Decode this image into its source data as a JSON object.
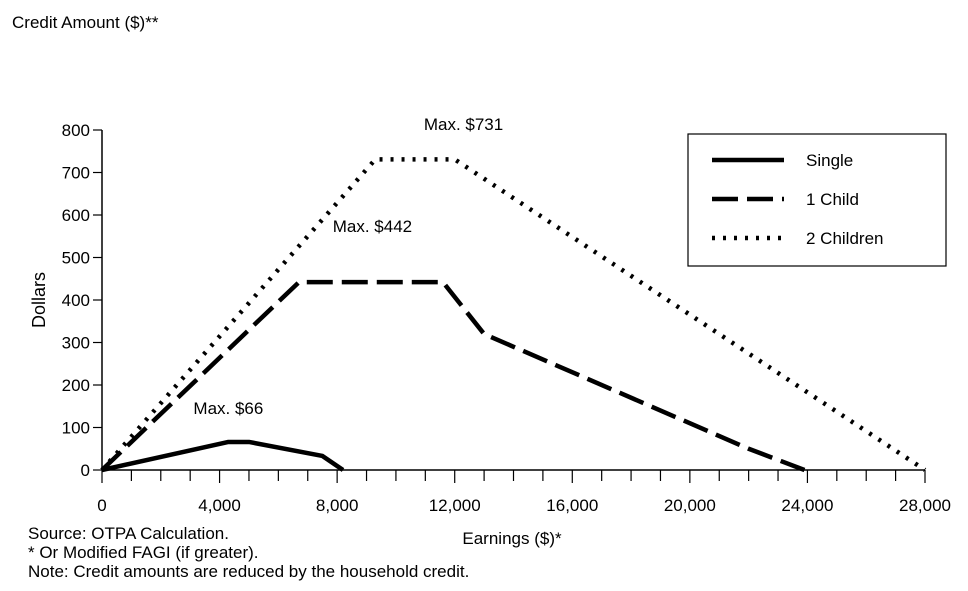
{
  "header": {
    "title": "Credit Amount ($)**"
  },
  "footer": {
    "source": "Source: OTPA Calculation.",
    "footnote": "* Or Modified FAGI (if greater).",
    "note": "Note: Credit amounts are reduced by the household credit."
  },
  "chart_data": {
    "type": "line",
    "title": "Credit Amount ($)**",
    "xlabel": "Earnings ($)*",
    "ylabel": "Dollars",
    "xlim": [
      0,
      28000
    ],
    "ylim": [
      0,
      800
    ],
    "xticks": [
      0,
      4000,
      8000,
      12000,
      16000,
      20000,
      24000,
      28000
    ],
    "xtick_labels": [
      "0",
      "4,000",
      "8,000",
      "12,000",
      "16,000",
      "20,000",
      "24,000",
      "28,000"
    ],
    "yticks": [
      0,
      100,
      200,
      300,
      400,
      500,
      600,
      700,
      800
    ],
    "ytick_labels": [
      "0",
      "100",
      "200",
      "300",
      "400",
      "500",
      "600",
      "700",
      "800"
    ],
    "x_minor_step": 1000,
    "grid": false,
    "legend_position": "top-right",
    "series": [
      {
        "name": "Single",
        "style": "solid",
        "color": "#000000",
        "x": [
          0,
          4300,
          5000,
          7500,
          8200
        ],
        "y": [
          0,
          66,
          66,
          33,
          0
        ]
      },
      {
        "name": "1 Child",
        "style": "dashed",
        "color": "#000000",
        "x": [
          0,
          6700,
          11600,
          13000,
          22000,
          23900
        ],
        "y": [
          0,
          442,
          442,
          320,
          50,
          0
        ]
      },
      {
        "name": "2 Children",
        "style": "dotted",
        "color": "#000000",
        "x": [
          0,
          9300,
          12000,
          28000
        ],
        "y": [
          0,
          731,
          731,
          0
        ]
      }
    ],
    "annotations": [
      {
        "text": "Max. $731",
        "x": 12300,
        "y": 800
      },
      {
        "text": "Max. $442",
        "x": 9200,
        "y": 560
      },
      {
        "text": "Max. $66",
        "x": 4300,
        "y": 132
      }
    ]
  }
}
